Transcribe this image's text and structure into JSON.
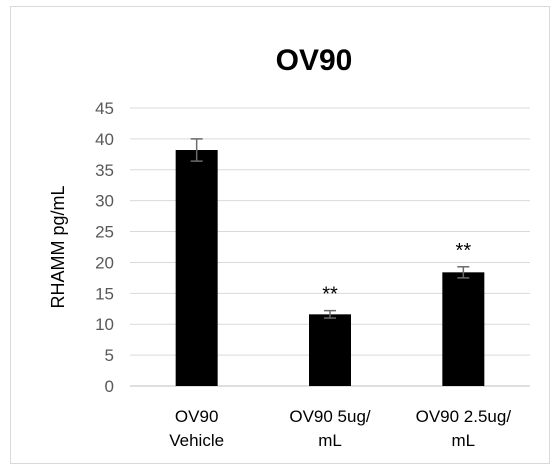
{
  "chart_data": {
    "type": "bar",
    "title": "OV90",
    "ylabel": "RHAMM pg/mL",
    "xlabel": "",
    "ylim": [
      0,
      45
    ],
    "yticks": [
      0,
      5,
      10,
      15,
      20,
      25,
      30,
      35,
      40,
      45
    ],
    "grid": true,
    "categories": [
      [
        "OV90",
        "Vehicle"
      ],
      [
        "OV90 5ug/",
        "mL"
      ],
      [
        "OV90 2.5ug/",
        "mL"
      ]
    ],
    "values": [
      38.2,
      11.6,
      18.4
    ],
    "errors": [
      1.8,
      0.6,
      0.9
    ],
    "annotations": [
      "",
      "**",
      "**"
    ],
    "bar_color": "#000000"
  }
}
